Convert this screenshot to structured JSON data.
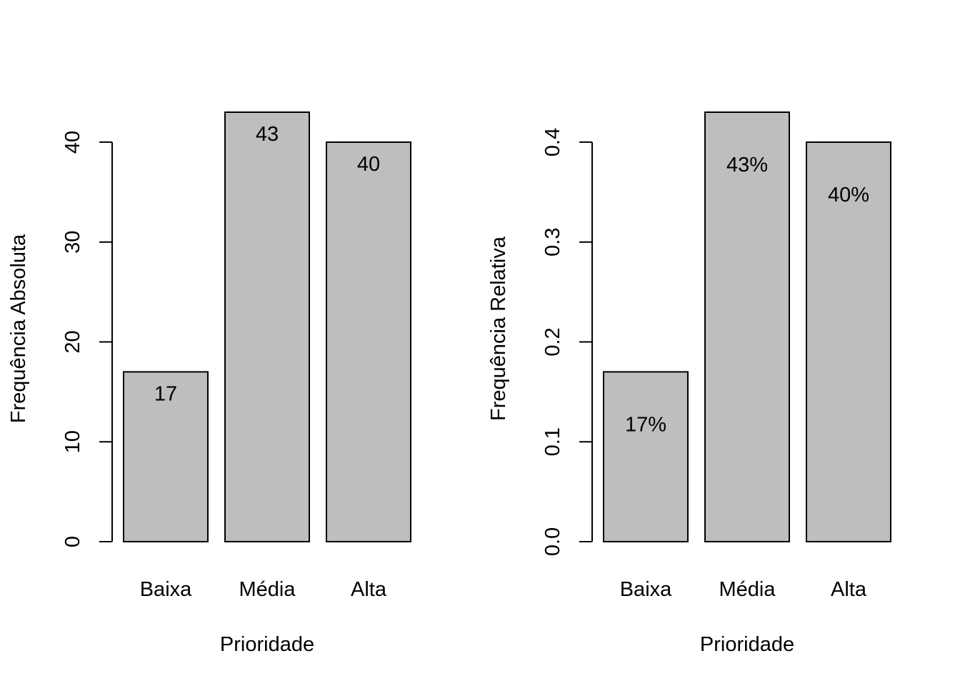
{
  "chart_data": [
    {
      "type": "bar",
      "title": "",
      "xlabel": "Prioridade",
      "ylabel": "Frequência Absoluta",
      "categories": [
        "Baixa",
        "Média",
        "Alta"
      ],
      "values": [
        17,
        43,
        40
      ],
      "data_labels": [
        "17",
        "43",
        "40"
      ],
      "ylim": [
        0,
        43
      ],
      "yticks": [
        0,
        10,
        20,
        30,
        40
      ],
      "ytick_labels": [
        "0",
        "10",
        "20",
        "30",
        "40"
      ],
      "bar_color": "#bebebe",
      "grid": false
    },
    {
      "type": "bar",
      "title": "",
      "xlabel": "Prioridade",
      "ylabel": "Frequência Relativa",
      "categories": [
        "Baixa",
        "Média",
        "Alta"
      ],
      "values": [
        0.17,
        0.43,
        0.4
      ],
      "data_labels": [
        "17%",
        "43%",
        "40%"
      ],
      "ylim": [
        0,
        0.43
      ],
      "yticks": [
        0.0,
        0.1,
        0.2,
        0.3,
        0.4
      ],
      "ytick_labels": [
        "0.0",
        "0.1",
        "0.2",
        "0.3",
        "0.4"
      ],
      "bar_color": "#bebebe",
      "grid": false
    }
  ]
}
